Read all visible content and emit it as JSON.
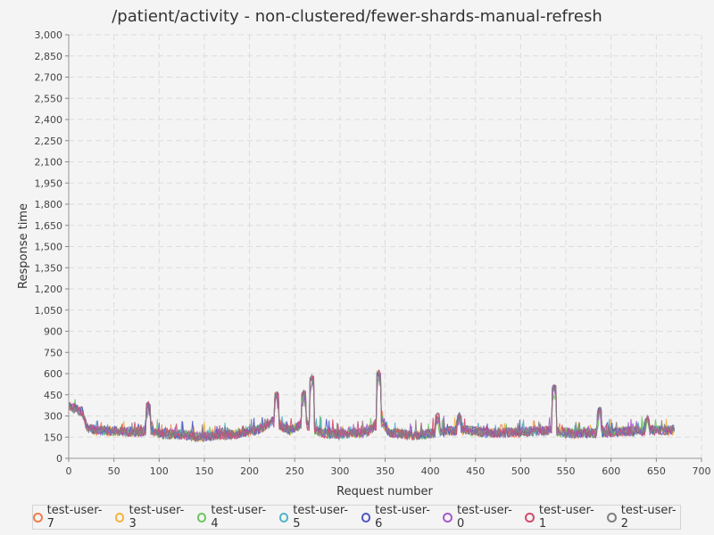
{
  "chart_data": {
    "type": "line",
    "title": "/patient/activity - non-clustered/fewer-shards-manual-refresh",
    "xlabel": "Request number",
    "ylabel": "Response time",
    "xlim": [
      0,
      700
    ],
    "ylim": [
      0,
      3000
    ],
    "x_ticks": [
      0,
      50,
      100,
      150,
      200,
      250,
      300,
      350,
      400,
      450,
      500,
      550,
      600,
      650,
      700
    ],
    "y_ticks": [
      0,
      150,
      300,
      450,
      600,
      750,
      900,
      1050,
      1200,
      1350,
      1500,
      1650,
      1800,
      1950,
      2100,
      2250,
      2400,
      2550,
      2700,
      2850,
      3000
    ],
    "y_tick_labels": [
      "0",
      "150",
      "300",
      "450",
      "600",
      "750",
      "900",
      "1,050",
      "1,200",
      "1,350",
      "1,500",
      "1,650",
      "1,800",
      "1,950",
      "2,100",
      "2,250",
      "2,400",
      "2,550",
      "2,700",
      "2,850",
      "3,000"
    ],
    "grid": true,
    "legend_position": "bottom",
    "n_points": 671,
    "baseline_profile": [
      [
        0,
        370
      ],
      [
        15,
        330
      ],
      [
        20,
        220
      ],
      [
        30,
        200
      ],
      [
        45,
        195
      ],
      [
        60,
        190
      ],
      [
        80,
        185
      ],
      [
        90,
        200
      ],
      [
        100,
        175
      ],
      [
        130,
        165
      ],
      [
        145,
        150
      ],
      [
        160,
        160
      ],
      [
        190,
        175
      ],
      [
        210,
        200
      ],
      [
        225,
        260
      ],
      [
        235,
        230
      ],
      [
        245,
        200
      ],
      [
        260,
        250
      ],
      [
        268,
        220
      ],
      [
        280,
        180
      ],
      [
        300,
        170
      ],
      [
        330,
        185
      ],
      [
        340,
        230
      ],
      [
        347,
        260
      ],
      [
        355,
        180
      ],
      [
        380,
        165
      ],
      [
        400,
        175
      ],
      [
        420,
        195
      ],
      [
        440,
        200
      ],
      [
        460,
        180
      ],
      [
        500,
        185
      ],
      [
        520,
        195
      ],
      [
        535,
        200
      ],
      [
        545,
        185
      ],
      [
        560,
        175
      ],
      [
        600,
        185
      ],
      [
        650,
        200
      ],
      [
        670,
        200
      ]
    ],
    "spikes": [
      {
        "x": 88,
        "y": 400
      },
      {
        "x": 230,
        "y": 470
      },
      {
        "x": 260,
        "y": 480
      },
      {
        "x": 269,
        "y": 590
      },
      {
        "x": 343,
        "y": 625
      },
      {
        "x": 408,
        "y": 320
      },
      {
        "x": 432,
        "y": 320
      },
      {
        "x": 537,
        "y": 520
      },
      {
        "x": 587,
        "y": 360
      },
      {
        "x": 640,
        "y": 300
      }
    ],
    "series": [
      {
        "name": "test-user-7",
        "color": "#f07e4d"
      },
      {
        "name": "test-user-3",
        "color": "#f5b13c"
      },
      {
        "name": "test-user-4",
        "color": "#6cc45f"
      },
      {
        "name": "test-user-5",
        "color": "#4fb2c6"
      },
      {
        "name": "test-user-6",
        "color": "#4c55c4"
      },
      {
        "name": "test-user-0",
        "color": "#a55ac9"
      },
      {
        "name": "test-user-1",
        "color": "#d14a6e"
      },
      {
        "name": "test-user-2",
        "color": "#808080"
      }
    ]
  }
}
